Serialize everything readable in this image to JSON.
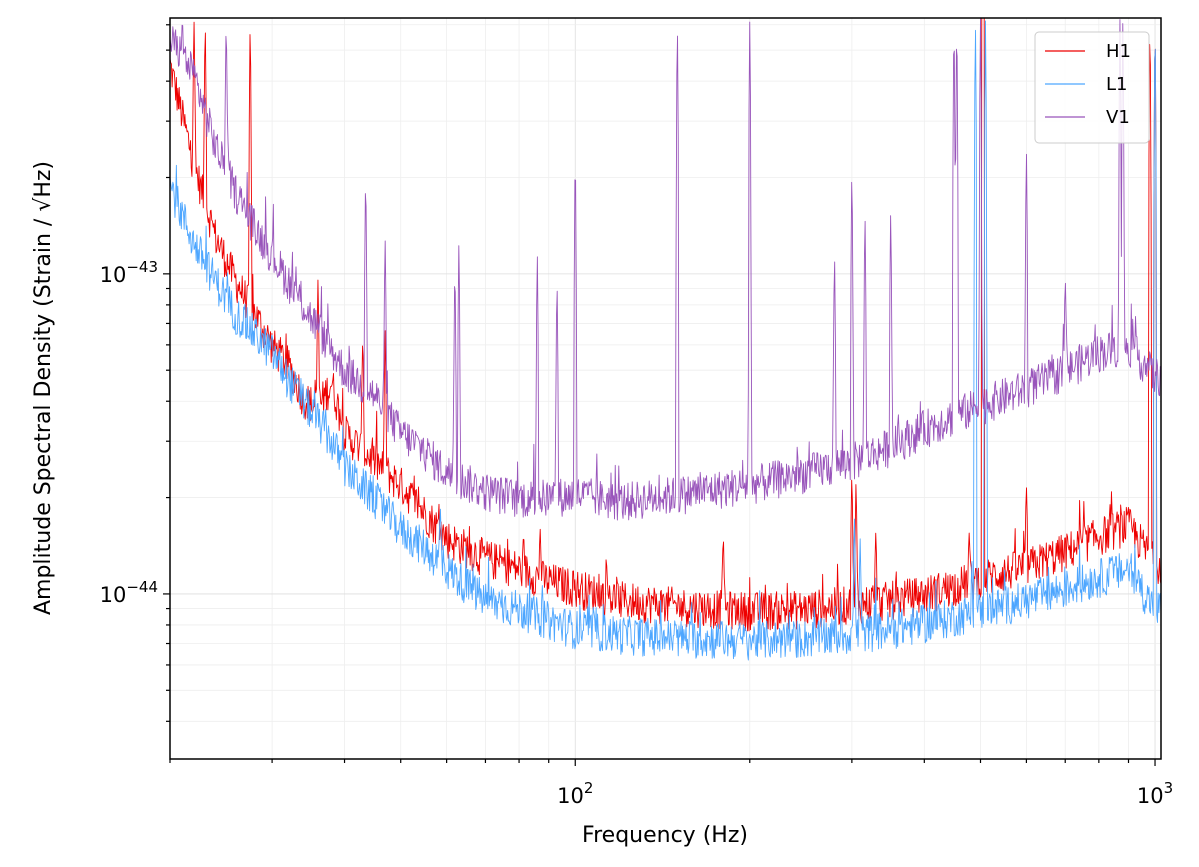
{
  "chart_data": {
    "type": "line",
    "title": "",
    "xlabel": "Frequency (Hz)",
    "ylabel": "Amplitude Spectral Density (Strain / √Hz)",
    "xscale": "log",
    "yscale": "log",
    "xlim": [
      20,
      1024
    ],
    "ylim": [
      3.05e-45,
      6.3e-43
    ],
    "grid": true,
    "legend_position": "top-right",
    "x_ticks": [
      {
        "value": 100,
        "base": "10",
        "exp": "2"
      },
      {
        "value": 1000,
        "base": "10",
        "exp": "3"
      }
    ],
    "y_ticks": [
      {
        "value": 1e-44,
        "base": "10",
        "exp": "−44"
      },
      {
        "value": 1e-43,
        "base": "10",
        "exp": "−43"
      }
    ],
    "series": [
      {
        "name": "H1",
        "color": "#ee0000",
        "points": [
          [
            20,
            4.5e-43
          ],
          [
            22,
            2.2e-43
          ],
          [
            24,
            1.3e-43
          ],
          [
            26,
            9.5e-44
          ],
          [
            28,
            7.5e-44
          ],
          [
            30,
            6e-44
          ],
          [
            32,
            5.2e-44
          ],
          [
            34,
            4.1e-44
          ],
          [
            36,
            3.8e-44
          ],
          [
            38,
            4.6e-44
          ],
          [
            40,
            3.2e-44
          ],
          [
            45,
            2.6e-44
          ],
          [
            50,
            2.2e-44
          ],
          [
            55,
            1.8e-44
          ],
          [
            60,
            1.5e-44
          ],
          [
            70,
            1.3e-44
          ],
          [
            80,
            1.2e-44
          ],
          [
            90,
            1.1e-44
          ],
          [
            100,
            1.05e-44
          ],
          [
            120,
            9.6e-45
          ],
          [
            150,
            9.2e-45
          ],
          [
            200,
            8.9e-45
          ],
          [
            250,
            9e-45
          ],
          [
            300,
            9.3e-45
          ],
          [
            350,
            9.6e-45
          ],
          [
            400,
            1e-44
          ],
          [
            450,
            1.06e-44
          ],
          [
            500,
            1.12e-44
          ],
          [
            600,
            1.22e-44
          ],
          [
            700,
            1.36e-44
          ],
          [
            800,
            1.52e-44
          ],
          [
            900,
            1.65e-44
          ],
          [
            1000,
            1.25e-44
          ]
        ],
        "lines_hz": [
          [
            22,
            6.3e-43
          ],
          [
            23,
            6.3e-43
          ],
          [
            27.5,
            6.3e-43
          ],
          [
            36,
            9.8e-44
          ],
          [
            43,
            6.5e-44
          ],
          [
            47,
            6.8e-44
          ],
          [
            87,
            1.6e-44
          ],
          [
            180,
            1.6e-44
          ],
          [
            300,
            2.5e-44
          ],
          [
            305,
            2.3e-44
          ],
          [
            330,
            1.6e-44
          ],
          [
            478,
            1.55e-44
          ],
          [
            505,
            6.3e-42
          ],
          [
            600,
            2.2e-44
          ],
          [
            980,
            6.3e-43
          ],
          [
            1000,
            6.3e-43
          ]
        ]
      },
      {
        "name": "L1",
        "color": "#4da6ff",
        "points": [
          [
            20,
            1.9e-43
          ],
          [
            22,
            1.25e-43
          ],
          [
            24,
            9.5e-44
          ],
          [
            26,
            7.5e-44
          ],
          [
            28,
            6.5e-44
          ],
          [
            30,
            5.7e-44
          ],
          [
            32,
            4.7e-44
          ],
          [
            34,
            4e-44
          ],
          [
            36,
            3.5e-44
          ],
          [
            38,
            3e-44
          ],
          [
            40,
            2.5e-44
          ],
          [
            45,
            2e-44
          ],
          [
            50,
            1.6e-44
          ],
          [
            55,
            1.4e-44
          ],
          [
            60,
            1.2e-44
          ],
          [
            70,
            9.6e-45
          ],
          [
            80,
            9e-45
          ],
          [
            90,
            8.3e-45
          ],
          [
            100,
            7.8e-45
          ],
          [
            120,
            7.5e-45
          ],
          [
            150,
            7.3e-45
          ],
          [
            200,
            7.2e-45
          ],
          [
            250,
            7.3e-45
          ],
          [
            300,
            7.5e-45
          ],
          [
            350,
            7.8e-45
          ],
          [
            400,
            8.1e-45
          ],
          [
            450,
            8.5e-45
          ],
          [
            500,
            8.9e-45
          ],
          [
            600,
            9.6e-45
          ],
          [
            700,
            1.04e-44
          ],
          [
            800,
            1.13e-44
          ],
          [
            900,
            1.2e-44
          ],
          [
            1000,
            9e-45
          ]
        ],
        "lines_hz": [
          [
            58.5,
            1.9e-44
          ],
          [
            303,
            1.8e-44
          ],
          [
            310,
            1.5e-44
          ],
          [
            490,
            6.3e-43
          ],
          [
            510,
            6.3e-43
          ],
          [
            1000,
            6.3e-43
          ]
        ]
      },
      {
        "name": "V1",
        "color": "#9955bb",
        "points": [
          [
            20,
            5.5e-43
          ],
          [
            22,
            4.2e-43
          ],
          [
            24,
            2.5e-43
          ],
          [
            26,
            1.8e-43
          ],
          [
            28,
            1.4e-43
          ],
          [
            30,
            1.15e-43
          ],
          [
            32,
            9.5e-44
          ],
          [
            34,
            8e-44
          ],
          [
            36,
            6.8e-44
          ],
          [
            38,
            5.8e-44
          ],
          [
            40,
            5e-44
          ],
          [
            45,
            4.2e-44
          ],
          [
            50,
            3.2e-44
          ],
          [
            55,
            2.8e-44
          ],
          [
            60,
            2.4e-44
          ],
          [
            70,
            2.1e-44
          ],
          [
            80,
            2e-44
          ],
          [
            90,
            2e-44
          ],
          [
            100,
            2.05e-44
          ],
          [
            120,
            1.95e-44
          ],
          [
            150,
            2.05e-44
          ],
          [
            200,
            2.2e-44
          ],
          [
            250,
            2.4e-44
          ],
          [
            300,
            2.6e-44
          ],
          [
            350,
            2.9e-44
          ],
          [
            400,
            3.3e-44
          ],
          [
            450,
            3.6e-44
          ],
          [
            500,
            3.9e-44
          ],
          [
            600,
            4.4e-44
          ],
          [
            700,
            5e-44
          ],
          [
            800,
            5.7e-44
          ],
          [
            900,
            6e-44
          ],
          [
            1000,
            4.8e-44
          ]
        ],
        "lines_hz": [
          [
            21,
            6.3e-43
          ],
          [
            25,
            6.3e-43
          ],
          [
            43.5,
            2.1e-43
          ],
          [
            47,
            1.3e-43
          ],
          [
            62,
            1.1e-43
          ],
          [
            63,
            1.3e-43
          ],
          [
            86,
            1.2e-43
          ],
          [
            93,
            1e-43
          ],
          [
            100,
            2.5e-43
          ],
          [
            150,
            6.3e-43
          ],
          [
            200,
            6.3e-43
          ],
          [
            280,
            1.2e-43
          ],
          [
            300,
            2.2e-43
          ],
          [
            316,
            1.6e-43
          ],
          [
            350,
            1.6e-43
          ],
          [
            450,
            6.3e-43
          ],
          [
            455,
            6.3e-43
          ],
          [
            500,
            6.3e-43
          ],
          [
            600,
            2.5e-43
          ],
          [
            700,
            1e-43
          ],
          [
            870,
            6.3e-43
          ],
          [
            880,
            6.3e-43
          ]
        ]
      }
    ]
  }
}
